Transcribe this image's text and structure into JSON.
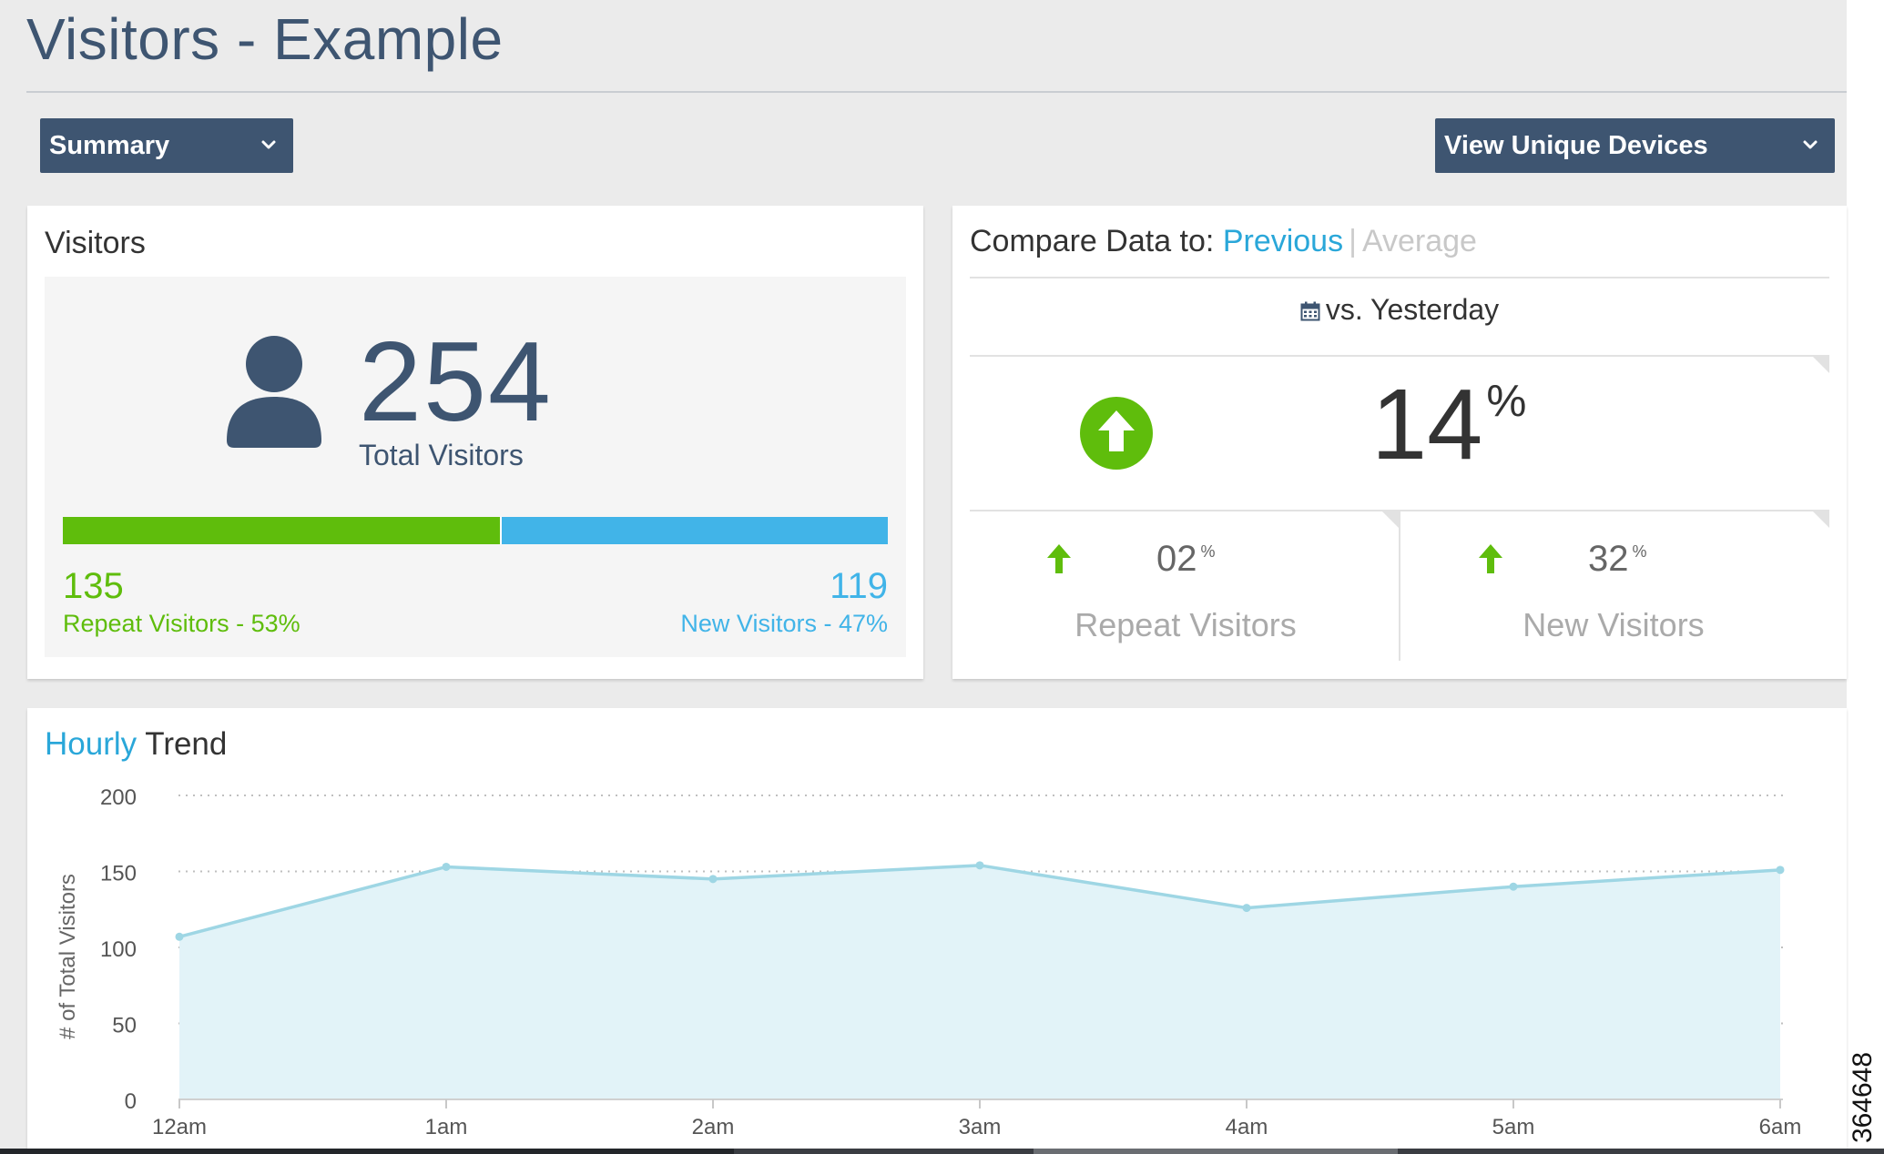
{
  "page": {
    "title": "Visitors - Example"
  },
  "controls": {
    "view_select": {
      "value": "Summary"
    },
    "device_select": {
      "value": "View Unique Devices"
    }
  },
  "visitors_card": {
    "heading": "Visitors",
    "total_value": "254",
    "total_label": "Total Visitors",
    "repeat": {
      "value": "135",
      "label": "Repeat Visitors - 53%",
      "fraction": 0.53,
      "color": "#5fbd0c"
    },
    "new": {
      "value": "119",
      "label": "New Visitors - 47%",
      "fraction": 0.47,
      "color": "#41b4e8"
    },
    "icon": "user-icon"
  },
  "compare_card": {
    "heading_prefix": "Compare Data to:",
    "option_previous": "Previous",
    "separator": "|",
    "option_average": "Average",
    "period": "vs. Yesterday",
    "period_icon": "calendar-icon",
    "overall_change": {
      "value": "14",
      "unit": "%",
      "direction_icon": "arrow-up-circle-icon",
      "color": "#5fbd0c"
    },
    "repeat_change": {
      "value": "02",
      "unit": "%",
      "label": "Repeat Visitors",
      "direction_icon": "arrow-up-icon"
    },
    "new_change": {
      "value": "32",
      "unit": "%",
      "label": "New Visitors",
      "direction_icon": "arrow-up-icon"
    }
  },
  "trend_card": {
    "heading_highlight": "Hourly",
    "heading_rest": "Trend"
  },
  "chart_data": {
    "type": "area",
    "title": "Hourly Trend",
    "xlabel": "",
    "ylabel": "# of Total Visitors",
    "x": [
      "12am",
      "1am",
      "2am",
      "3am",
      "4am",
      "5am",
      "6am"
    ],
    "series": [
      {
        "values": [
          107,
          153,
          145,
          154,
          126,
          140,
          151
        ]
      }
    ],
    "ylim": [
      0,
      200
    ],
    "yticks": [
      0,
      50,
      100,
      150,
      200
    ],
    "grid": true,
    "line_color": "#9ed6e4",
    "fill_color": "#e2f3f8"
  },
  "side_label": "364648"
}
